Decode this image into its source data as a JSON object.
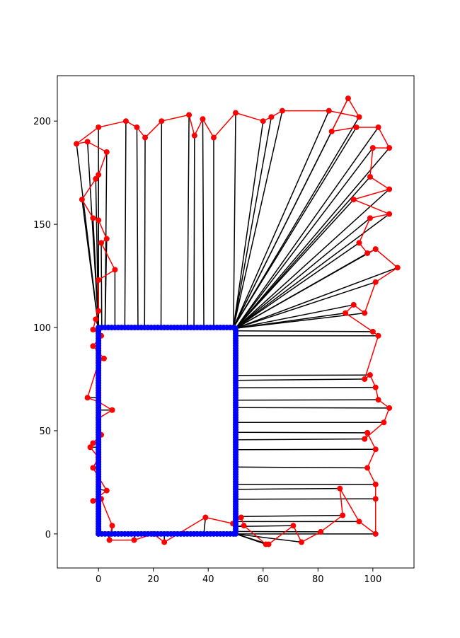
{
  "chart_data": {
    "type": "scatter",
    "title": "",
    "xlabel": "",
    "ylabel": "",
    "xlim": [
      -15,
      115
    ],
    "ylim": [
      -16.5,
      222
    ],
    "grid": false,
    "xticks": [
      0,
      20,
      40,
      60,
      80,
      100
    ],
    "yticks": [
      0,
      50,
      100,
      150,
      200
    ],
    "colors": {
      "boundary": "#0000ff",
      "path": "#ff0000",
      "link": "#000000",
      "axes": "#000000"
    },
    "boundary_rectangle": {
      "x": [
        0,
        50
      ],
      "y": [
        0,
        100
      ],
      "point_spacing": 1.2
    },
    "outer_path": [
      [
        -8,
        189
      ],
      [
        -4,
        190
      ],
      [
        3,
        185
      ],
      [
        0,
        174
      ],
      [
        -1,
        172
      ],
      [
        -6,
        162
      ],
      [
        -2,
        153
      ],
      [
        0,
        152
      ],
      [
        3,
        143
      ],
      [
        1,
        141
      ],
      [
        6,
        128
      ],
      [
        0,
        123
      ],
      [
        0,
        108
      ],
      [
        -1,
        104
      ],
      [
        -2,
        99
      ],
      [
        1,
        96
      ],
      [
        -2,
        91
      ],
      [
        2,
        85
      ],
      [
        0,
        83
      ],
      [
        -4,
        66
      ],
      [
        0,
        64
      ],
      [
        5,
        60
      ],
      [
        0,
        56
      ],
      [
        1,
        48
      ],
      [
        -2,
        44
      ],
      [
        -3,
        42
      ],
      [
        0,
        37
      ],
      [
        -2,
        32
      ],
      [
        3,
        21
      ],
      [
        -2,
        16
      ],
      [
        1,
        17
      ],
      [
        5,
        4
      ],
      [
        4,
        -3
      ],
      [
        13,
        -3
      ],
      [
        20,
        0
      ],
      [
        24,
        -4
      ],
      [
        39,
        8
      ],
      [
        49,
        5
      ],
      [
        52,
        8
      ],
      [
        53,
        4
      ],
      [
        61,
        -5
      ],
      [
        62,
        -5
      ],
      [
        71,
        4
      ],
      [
        74,
        -4
      ],
      [
        81,
        1
      ],
      [
        89,
        9
      ],
      [
        88,
        22
      ],
      [
        95,
        6
      ],
      [
        101,
        0
      ],
      [
        101,
        17
      ],
      [
        101,
        24
      ],
      [
        98,
        32
      ],
      [
        101,
        41
      ],
      [
        98,
        49
      ],
      [
        97,
        46
      ],
      [
        104,
        54
      ],
      [
        106,
        61
      ],
      [
        102,
        65
      ],
      [
        101,
        71
      ],
      [
        99,
        77
      ],
      [
        97,
        75
      ],
      [
        102,
        96
      ],
      [
        100,
        98
      ],
      [
        90,
        107
      ],
      [
        93,
        111
      ],
      [
        97,
        107
      ],
      [
        101,
        122
      ],
      [
        109,
        129
      ],
      [
        101,
        138
      ],
      [
        98,
        136
      ],
      [
        95,
        141
      ],
      [
        99,
        153
      ],
      [
        106,
        155
      ],
      [
        93,
        162
      ],
      [
        106,
        167
      ],
      [
        99,
        173
      ],
      [
        100,
        187
      ],
      [
        106,
        187
      ],
      [
        102,
        197
      ],
      [
        94,
        197
      ],
      [
        85,
        195
      ],
      [
        91,
        211
      ],
      [
        95,
        202
      ],
      [
        84,
        205
      ],
      [
        67,
        205
      ],
      [
        63,
        202
      ],
      [
        60,
        200
      ],
      [
        50,
        204
      ],
      [
        42,
        192
      ],
      [
        38,
        201
      ],
      [
        35,
        193
      ],
      [
        33,
        203
      ],
      [
        23,
        200
      ],
      [
        17,
        192
      ],
      [
        14,
        197
      ],
      [
        10,
        200
      ],
      [
        0,
        197
      ],
      [
        -8,
        189
      ]
    ]
  }
}
